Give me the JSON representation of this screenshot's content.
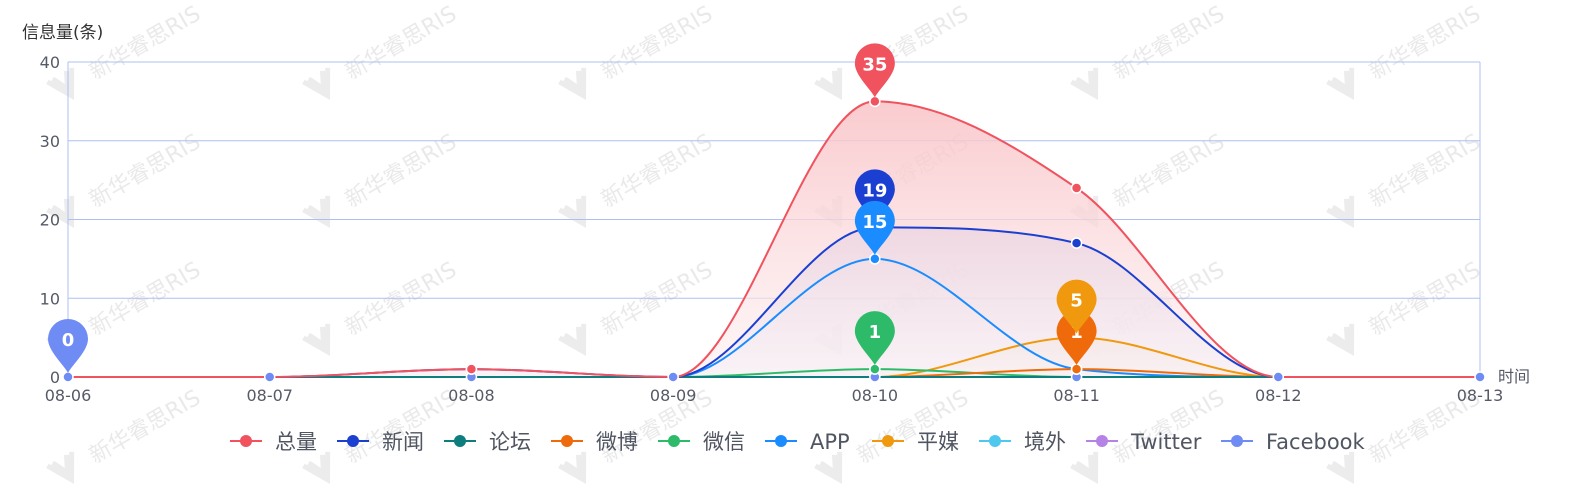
{
  "chart_data": {
    "type": "area",
    "ylabel": "信息量(条)",
    "xlabel": "时间",
    "categories": [
      "08-06",
      "08-07",
      "08-08",
      "08-09",
      "08-10",
      "08-11",
      "08-12",
      "08-13"
    ],
    "ylim": [
      0,
      40
    ],
    "yticks": [
      0,
      10,
      20,
      30,
      40
    ],
    "grid": true,
    "legend_position": "bottom",
    "watermark": "新华睿思RIS",
    "series": [
      {
        "name": "总量",
        "color": "#f0525e",
        "values": [
          0,
          0,
          1,
          0,
          35,
          24,
          0,
          0
        ],
        "area": true
      },
      {
        "name": "新闻",
        "color": "#1a3fd1",
        "values": [
          0,
          0,
          1,
          0,
          19,
          17,
          0,
          0
        ],
        "area": true
      },
      {
        "name": "论坛",
        "color": "#0e7d7d",
        "values": [
          0,
          0,
          0,
          0,
          0,
          0,
          0,
          0
        ]
      },
      {
        "name": "微博",
        "color": "#ee6a0a",
        "values": [
          0,
          0,
          0,
          0,
          0,
          1,
          0,
          0
        ]
      },
      {
        "name": "微信",
        "color": "#2dbb6a",
        "values": [
          0,
          0,
          0,
          0,
          1,
          0,
          0,
          0
        ]
      },
      {
        "name": "APP",
        "color": "#1a8cff",
        "values": [
          0,
          0,
          0,
          0,
          15,
          1,
          0,
          0
        ]
      },
      {
        "name": "平媒",
        "color": "#f0990e",
        "values": [
          0,
          0,
          0,
          0,
          0,
          5,
          0,
          0
        ],
        "area": true
      },
      {
        "name": "境外",
        "color": "#4fc8f0",
        "values": [
          0,
          0,
          0,
          0,
          0,
          0,
          0,
          0
        ]
      },
      {
        "name": "Twitter",
        "color": "#b583e6",
        "values": [
          0,
          0,
          0,
          0,
          0,
          0,
          0,
          0
        ]
      },
      {
        "name": "Facebook",
        "color": "#6f8cf5",
        "values": [
          0,
          0,
          0,
          0,
          0,
          0,
          0,
          0
        ]
      }
    ],
    "markers": [
      {
        "series": "Facebook",
        "category": "08-06",
        "value": 0
      },
      {
        "series": "总量",
        "category": "08-10",
        "value": 35
      },
      {
        "series": "新闻",
        "category": "08-10",
        "value": 19
      },
      {
        "series": "APP",
        "category": "08-10",
        "value": 15
      },
      {
        "series": "微信",
        "category": "08-10",
        "value": 1
      },
      {
        "series": "微博",
        "category": "08-11",
        "value": 1
      },
      {
        "series": "平媒",
        "category": "08-11",
        "value": 5
      }
    ]
  }
}
